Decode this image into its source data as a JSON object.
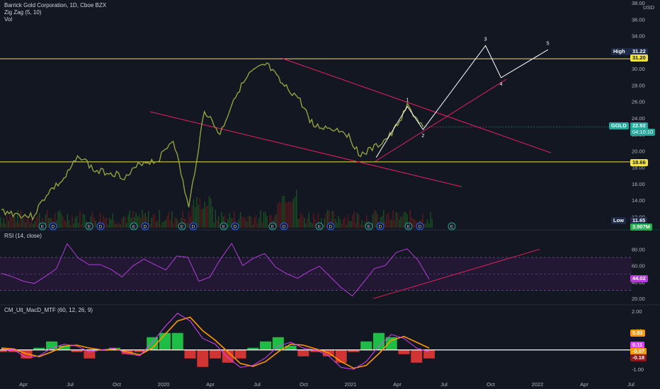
{
  "header": {
    "title": "Barrick Gold Corporation, 1D, Cboe BZX",
    "line2": "Zig Zag (5, 10)",
    "line3": "Vol",
    "currency": "USD"
  },
  "rsi": {
    "title": "RSI (14, close)",
    "value_label": "44.02"
  },
  "macd": {
    "title": "CM_Ult_MacD_MTF (60, 12, 26, 9)"
  },
  "price_tags": {
    "high_label": "High",
    "high_value": "31.22",
    "level_upper": "31.20",
    "symbol": "GOLD",
    "last": "22.92",
    "countdown": "04:10:10",
    "level_lower": "18.66",
    "low_label": "Low",
    "low_value": "11.65",
    "volume": "3.907M"
  },
  "macd_tags": {
    "a": "0.83",
    "b": "0.11",
    "c": "-0.07",
    "d": "-0.18"
  },
  "wave_labels": [
    "1",
    "2",
    "3",
    "4",
    "5"
  ],
  "event_badges": [
    "E",
    "D",
    "E",
    "D",
    "E",
    "D",
    "E",
    "D",
    "E",
    "D",
    "E",
    "D",
    "E",
    "D",
    "E",
    "D",
    "E",
    "D",
    "E",
    "D",
    "E"
  ],
  "colors": {
    "background": "#131722",
    "price_line": "#f0a030",
    "zigzag": "#4caf50",
    "wedge": "#e91e63",
    "projection": "#ffffff",
    "level": "#f2e34b",
    "rsi": "#b23cd8",
    "macd": "#e040fb",
    "signal": "#ff9800",
    "hist_up": "#1fd04a",
    "hist_down": "#e53935",
    "last_price": "#26a69a"
  },
  "chart_data": [
    {
      "type": "line",
      "series": [
        {
          "name": "GOLD",
          "values": [
            {
              "x": "2019-03",
              "y": 12.7
            },
            {
              "x": "2019-04",
              "y": 12.3
            },
            {
              "x": "2019-05",
              "y": 12.0
            },
            {
              "x": "2019-06",
              "y": 15.0
            },
            {
              "x": "2019-07",
              "y": 16.5
            },
            {
              "x": "2019-08",
              "y": 19.5
            },
            {
              "x": "2019-09",
              "y": 17.5
            },
            {
              "x": "2019-10",
              "y": 17.4
            },
            {
              "x": "2019-11",
              "y": 16.8
            },
            {
              "x": "2019-12",
              "y": 18.6
            },
            {
              "x": "2020-01",
              "y": 18.8
            },
            {
              "x": "2020-02",
              "y": 21.5
            },
            {
              "x": "2020-03",
              "y": 13.0
            },
            {
              "x": "2020-04",
              "y": 25.0
            },
            {
              "x": "2020-05",
              "y": 22.0
            },
            {
              "x": "2020-06",
              "y": 26.9
            },
            {
              "x": "2020-07",
              "y": 29.5
            },
            {
              "x": "2020-08",
              "y": 30.5
            },
            {
              "x": "2020-09",
              "y": 28.0
            },
            {
              "x": "2020-10",
              "y": 26.5
            },
            {
              "x": "2020-11",
              "y": 23.0
            },
            {
              "x": "2020-12",
              "y": 22.8
            },
            {
              "x": "2021-01",
              "y": 22.4
            },
            {
              "x": "2021-02",
              "y": 19.5
            },
            {
              "x": "2021-03",
              "y": 20.5
            },
            {
              "x": "2021-04",
              "y": 22.0
            },
            {
              "x": "2021-05",
              "y": 25.4
            },
            {
              "x": "2021-06",
              "y": 22.92
            }
          ]
        }
      ],
      "xlabels": [
        "Apr",
        "Jul",
        "Oct",
        "2020",
        "Apr",
        "Jul",
        "Oct",
        "2021",
        "Apr",
        "Jul",
        "Oct",
        "2022",
        "Apr",
        "Jul"
      ],
      "yticks": [
        "38.00",
        "36.00",
        "34.00",
        "32.00",
        "30.00",
        "28.00",
        "26.00",
        "24.00",
        "22.00",
        "20.00",
        "18.00",
        "16.00",
        "14.00",
        "12.00"
      ],
      "yaxis_range": [
        11,
        38
      ],
      "levels": [
        31.2,
        18.66
      ],
      "wave_points": [
        {
          "label": "1",
          "x": "2021-05",
          "y": 25.4
        },
        {
          "label": "2",
          "x": "2021-06",
          "y": 22.6
        },
        {
          "label": "3",
          "x": "2021-10",
          "y": 32.8
        },
        {
          "label": "4",
          "x": "2021-11",
          "y": 28.9
        },
        {
          "label": "5",
          "x": "2022-02",
          "y": 32.3
        }
      ]
    },
    {
      "type": "line",
      "series": [
        {
          "name": "RSI",
          "values": [
            50,
            45,
            42,
            40,
            48,
            55,
            88,
            70,
            60,
            62,
            55,
            45,
            58,
            68,
            62,
            55,
            72,
            70,
            42,
            45,
            70,
            86,
            62,
            70,
            75,
            58,
            50,
            44,
            52,
            60,
            45,
            35,
            25,
            40,
            55,
            62,
            75,
            80,
            65,
            44.02
          ]
        }
      ],
      "yticks": [
        "80.00",
        "60.00",
        "40.00",
        "20.00"
      ],
      "yaxis_range": [
        15,
        95
      ],
      "bands": [
        70,
        30
      ]
    },
    {
      "type": "line",
      "series": [
        {
          "name": "MACD",
          "values": [
            0.05,
            0.0,
            -0.4,
            -0.3,
            0.1,
            0.3,
            0.2,
            -0.1,
            0.0,
            0.1,
            -0.2,
            -0.3,
            0.4,
            1.2,
            1.9,
            1.5,
            0.6,
            0.3,
            -0.4,
            -0.9,
            -0.8,
            -0.4,
            0.2,
            0.4,
            0.1,
            0.0,
            -0.3,
            -0.9,
            -1.0,
            -0.6,
            0.2,
            0.8,
            0.6,
            0.1,
            -0.1
          ]
        },
        {
          "name": "Signal",
          "values": [
            0.1,
            0.05,
            -0.2,
            -0.35,
            -0.1,
            0.2,
            0.25,
            0.1,
            0.0,
            0.05,
            -0.1,
            -0.25,
            0.1,
            0.8,
            1.5,
            1.7,
            1.0,
            0.5,
            -0.1,
            -0.7,
            -0.85,
            -0.6,
            -0.1,
            0.3,
            0.25,
            0.05,
            -0.15,
            -0.6,
            -0.95,
            -0.8,
            -0.2,
            0.5,
            0.7,
            0.4,
            0.1
          ]
        }
      ],
      "yticks": [
        "2.00",
        "1.00",
        "-1.00"
      ],
      "yaxis_range": [
        -1.4,
        2.3
      ],
      "zero_line": 0
    }
  ]
}
